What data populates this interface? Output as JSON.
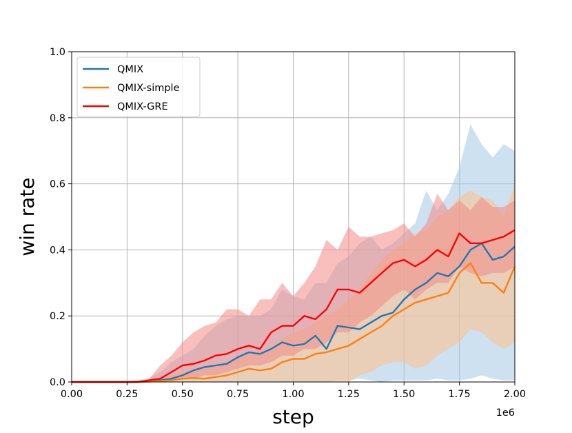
{
  "chart_data": {
    "type": "line",
    "title": "",
    "xlabel": "step",
    "ylabel": "win rate",
    "x_offset_label": "1e6",
    "xlim": [
      0,
      2.0
    ],
    "ylim": [
      0,
      1.0
    ],
    "x_ticks": [
      0.0,
      0.25,
      0.5,
      0.75,
      1.0,
      1.25,
      1.5,
      1.75,
      2.0
    ],
    "x_tick_labels": [
      "0.00",
      "0.25",
      "0.50",
      "0.75",
      "1.00",
      "1.25",
      "1.50",
      "1.75",
      "2.00"
    ],
    "y_ticks": [
      0.0,
      0.2,
      0.4,
      0.6,
      0.8,
      1.0
    ],
    "y_tick_labels": [
      "0.0",
      "0.2",
      "0.4",
      "0.6",
      "0.8",
      "1.0"
    ],
    "grid": true,
    "legend_position": "top-left",
    "x": [
      0.0,
      0.1,
      0.2,
      0.3,
      0.35,
      0.4,
      0.45,
      0.5,
      0.55,
      0.6,
      0.65,
      0.7,
      0.75,
      0.8,
      0.85,
      0.9,
      0.95,
      1.0,
      1.05,
      1.1,
      1.15,
      1.2,
      1.25,
      1.3,
      1.35,
      1.4,
      1.45,
      1.5,
      1.55,
      1.6,
      1.65,
      1.7,
      1.75,
      1.8,
      1.85,
      1.9,
      1.95,
      2.0
    ],
    "series": [
      {
        "name": "QMIX",
        "color": "#1f77b4",
        "band_color": "#a6c8e3",
        "values": [
          0,
          0,
          0,
          0,
          0.002,
          0.005,
          0.01,
          0.02,
          0.035,
          0.045,
          0.05,
          0.055,
          0.075,
          0.09,
          0.085,
          0.1,
          0.12,
          0.11,
          0.115,
          0.14,
          0.1,
          0.17,
          0.165,
          0.16,
          0.18,
          0.2,
          0.21,
          0.25,
          0.28,
          0.3,
          0.33,
          0.32,
          0.35,
          0.4,
          0.42,
          0.37,
          0.38,
          0.41
        ],
        "lower": [
          0,
          0,
          0,
          0,
          0,
          0,
          0,
          0,
          0,
          0,
          0,
          0,
          0,
          0,
          0,
          0,
          0,
          0,
          0,
          0,
          0,
          0.005,
          0.005,
          0.01,
          0.005,
          0.0,
          0.005,
          0.005,
          0.005,
          0.005,
          0.01,
          0.005,
          0.005,
          0.01,
          0.02,
          0.01,
          0.005,
          0.005
        ],
        "upper": [
          0,
          0,
          0,
          0.005,
          0.01,
          0.03,
          0.06,
          0.08,
          0.1,
          0.14,
          0.17,
          0.19,
          0.2,
          0.2,
          0.2,
          0.22,
          0.28,
          0.26,
          0.25,
          0.3,
          0.3,
          0.36,
          0.38,
          0.42,
          0.44,
          0.4,
          0.42,
          0.45,
          0.48,
          0.58,
          0.52,
          0.57,
          0.65,
          0.78,
          0.72,
          0.68,
          0.72,
          0.7
        ]
      },
      {
        "name": "QMIX-simple",
        "color": "#ff7f0e",
        "band_color": "#ffc08b",
        "values": [
          0,
          0,
          0,
          0,
          0.001,
          0.003,
          0.005,
          0.01,
          0.012,
          0.01,
          0.015,
          0.02,
          0.03,
          0.04,
          0.035,
          0.04,
          0.06,
          0.07,
          0.07,
          0.085,
          0.09,
          0.1,
          0.11,
          0.13,
          0.15,
          0.17,
          0.2,
          0.22,
          0.24,
          0.25,
          0.26,
          0.27,
          0.33,
          0.36,
          0.3,
          0.3,
          0.27,
          0.35
        ],
        "lower": [
          0,
          0,
          0,
          0,
          0,
          0,
          0,
          0,
          0,
          0,
          0,
          0,
          0,
          0,
          0,
          0,
          0,
          0,
          0,
          0,
          0,
          0,
          0,
          0.02,
          0.03,
          0.05,
          0.06,
          0.06,
          0.04,
          0.05,
          0.08,
          0.1,
          0.12,
          0.16,
          0.15,
          0.12,
          0.1,
          0.12
        ],
        "upper": [
          0,
          0,
          0,
          0,
          0.005,
          0.01,
          0.02,
          0.03,
          0.04,
          0.04,
          0.05,
          0.06,
          0.07,
          0.09,
          0.09,
          0.1,
          0.13,
          0.15,
          0.16,
          0.18,
          0.2,
          0.22,
          0.25,
          0.28,
          0.33,
          0.37,
          0.4,
          0.42,
          0.45,
          0.46,
          0.5,
          0.52,
          0.56,
          0.58,
          0.56,
          0.55,
          0.5,
          0.6
        ]
      },
      {
        "name": "QMIX-GRE",
        "color": "#ff0000",
        "band_color": "#f28b86",
        "values": [
          0,
          0,
          0,
          0,
          0.005,
          0.01,
          0.03,
          0.05,
          0.055,
          0.065,
          0.08,
          0.085,
          0.1,
          0.11,
          0.1,
          0.15,
          0.17,
          0.17,
          0.2,
          0.19,
          0.22,
          0.28,
          0.28,
          0.27,
          0.3,
          0.33,
          0.36,
          0.37,
          0.35,
          0.37,
          0.4,
          0.38,
          0.45,
          0.42,
          0.42,
          0.43,
          0.44,
          0.46
        ],
        "lower": [
          0,
          0,
          0,
          0,
          0,
          0,
          0.005,
          0.01,
          0.01,
          0.02,
          0.02,
          0.03,
          0.04,
          0.05,
          0.05,
          0.06,
          0.08,
          0.08,
          0.1,
          0.1,
          0.12,
          0.15,
          0.15,
          0.18,
          0.2,
          0.23,
          0.26,
          0.28,
          0.25,
          0.28,
          0.3,
          0.3,
          0.35,
          0.33,
          0.32,
          0.33,
          0.33,
          0.35
        ],
        "upper": [
          0,
          0,
          0,
          0.005,
          0.01,
          0.05,
          0.08,
          0.12,
          0.15,
          0.17,
          0.18,
          0.22,
          0.22,
          0.2,
          0.25,
          0.25,
          0.3,
          0.26,
          0.3,
          0.35,
          0.43,
          0.4,
          0.47,
          0.44,
          0.44,
          0.45,
          0.46,
          0.48,
          0.44,
          0.48,
          0.57,
          0.52,
          0.55,
          0.52,
          0.56,
          0.53,
          0.53,
          0.55
        ]
      }
    ]
  }
}
